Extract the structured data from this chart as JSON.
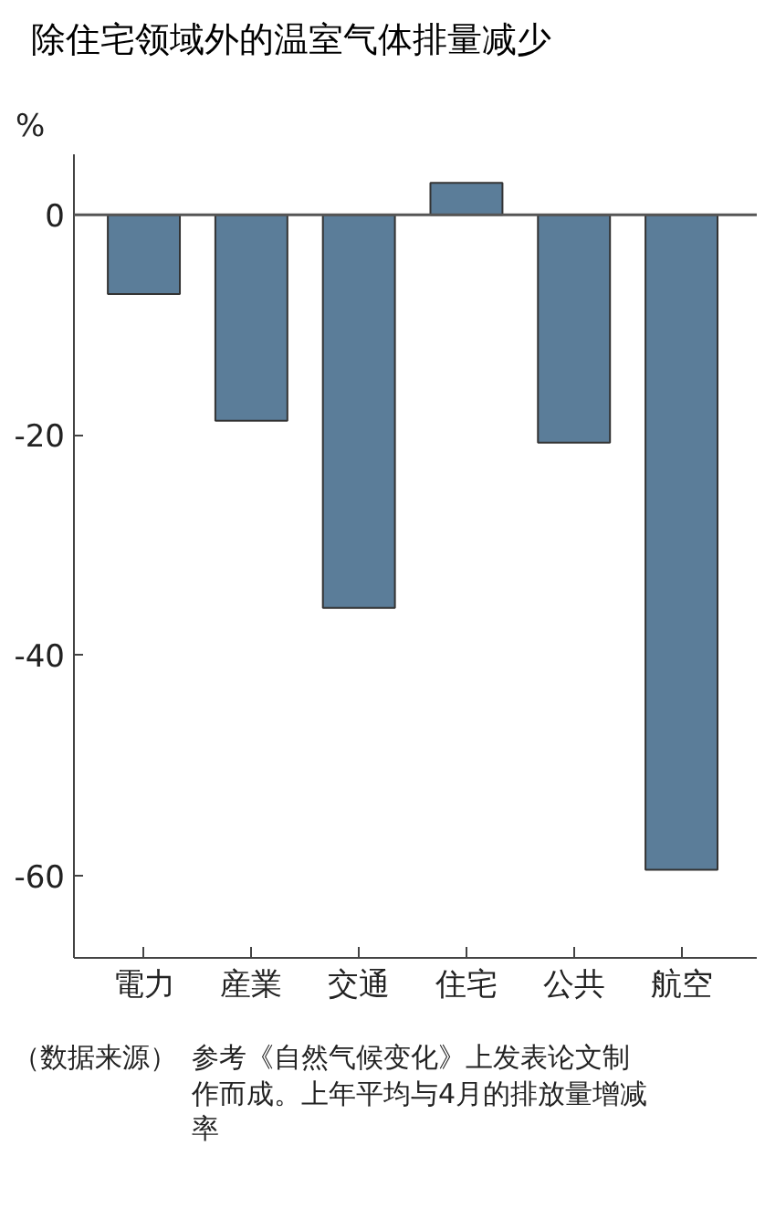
{
  "chart_data": {
    "type": "bar",
    "title": "除住宅领域外的温室气体排量减少",
    "ylabel": "%",
    "categories": [
      "電力",
      "産業",
      "交通",
      "住宅",
      "公共",
      "航空"
    ],
    "values": [
      -7.2,
      -18.7,
      -35.7,
      2.9,
      -20.7,
      -59.5
    ],
    "color": "#5b7d99",
    "ylim": [
      -67.5,
      5.5
    ],
    "yticks": [
      0,
      -20,
      -40,
      -60
    ],
    "grid": false,
    "ref_lines": [
      {
        "axis": "y",
        "value": 0,
        "color": "#555555"
      }
    ],
    "annotations": [
      "（数据来源）",
      "参考《自然气候变化》上发表论文制作而成。上年平均与4月的排放量增减率"
    ]
  }
}
